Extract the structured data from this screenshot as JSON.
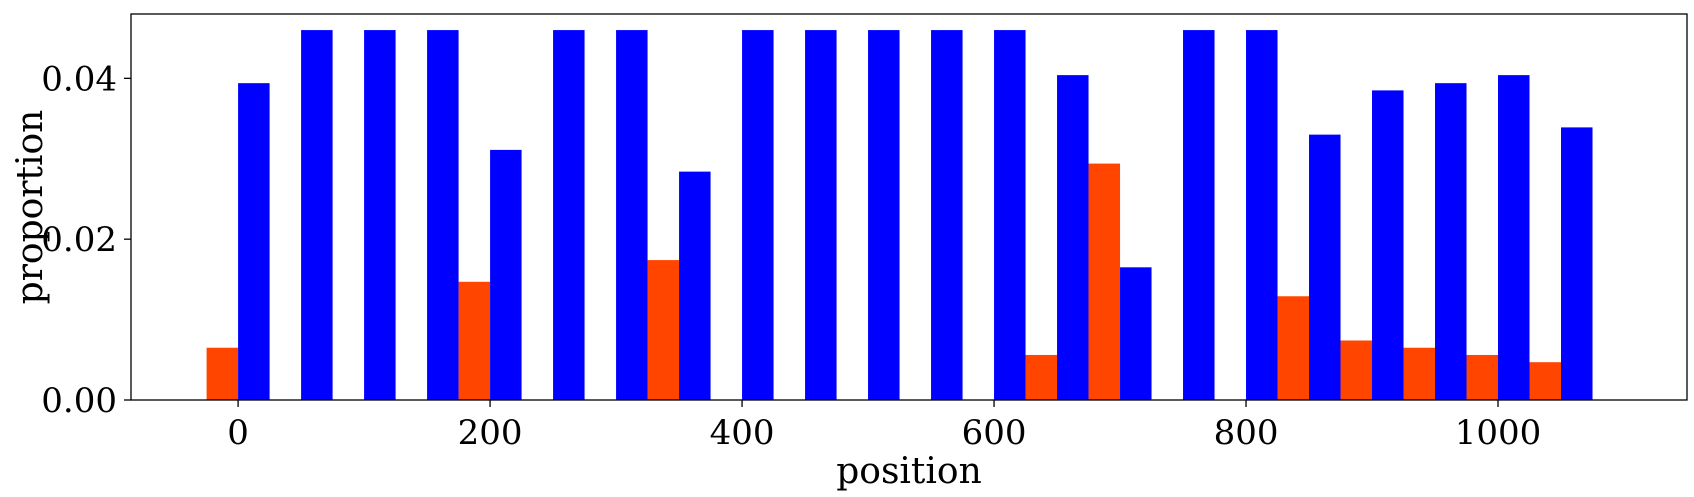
{
  "chart_data": {
    "type": "bar",
    "title": "",
    "xlabel": "position",
    "ylabel": "proportion",
    "xlim": [
      -85,
      1150
    ],
    "ylim": [
      0,
      0.048
    ],
    "bar_width": 25,
    "series_order": [
      "red",
      "blue"
    ],
    "xticks": [
      0,
      200,
      400,
      600,
      800,
      1000
    ],
    "xtick_labels": [
      "0",
      "200",
      "400",
      "600",
      "800",
      "1000"
    ],
    "yticks": [
      0.0,
      0.02,
      0.04
    ],
    "ytick_labels": [
      "0.00",
      "0.02",
      "0.04"
    ],
    "x": [
      0,
      50,
      100,
      150,
      200,
      250,
      300,
      350,
      400,
      450,
      500,
      550,
      600,
      650,
      700,
      750,
      800,
      850,
      900,
      950,
      1000,
      1050
    ],
    "series": [
      {
        "name": "red",
        "color": "#ff4500",
        "values": [
          0.0065,
          0,
          0,
          0,
          0.0147,
          0,
          0,
          0.0174,
          0,
          0,
          0,
          0,
          0,
          0.0056,
          0.0294,
          0,
          0,
          0.0129,
          0.0074,
          0.0065,
          0.0056,
          0.0047
        ]
      },
      {
        "name": "blue",
        "color": "#0000ff",
        "values": [
          0.0394,
          0.046,
          0.046,
          0.046,
          0.0311,
          0.046,
          0.046,
          0.0284,
          0.046,
          0.046,
          0.046,
          0.046,
          0.046,
          0.0404,
          0.0165,
          0.046,
          0.046,
          0.033,
          0.0385,
          0.0394,
          0.0404,
          0.0339
        ]
      }
    ]
  }
}
